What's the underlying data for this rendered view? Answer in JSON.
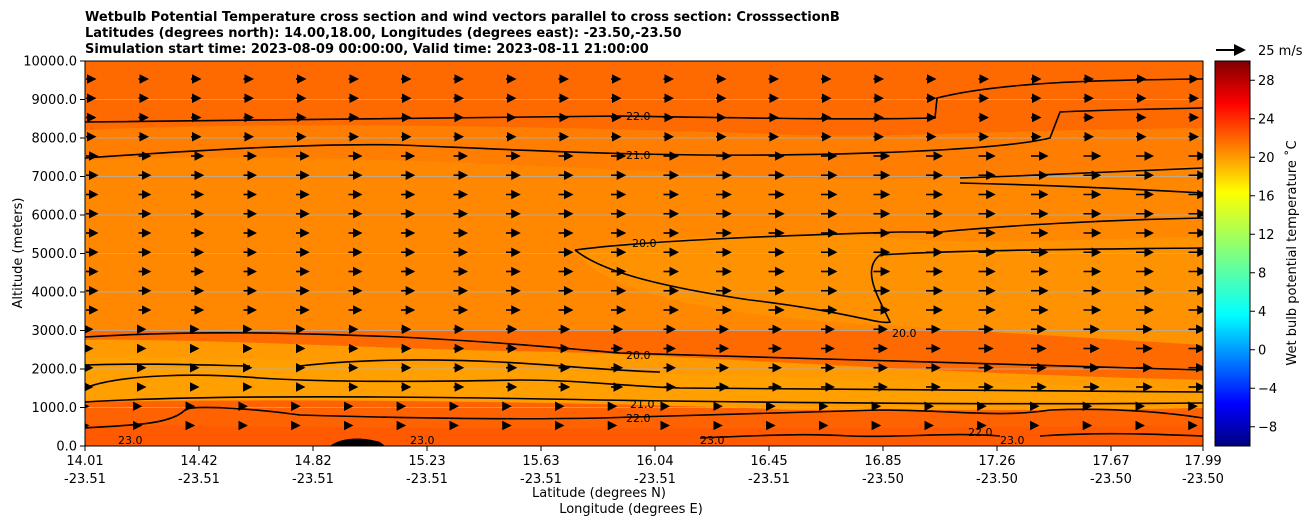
{
  "chart_data": {
    "type": "contourf",
    "title_lines": [
      "Wetbulb Potential Temperature cross section and wind vectors parallel to cross section: CrosssectionB",
      "Latitudes (degrees north): 14.00,18.00, Longitudes (degrees east): -23.50,-23.50",
      "Simulation start time: 2023-08-09 00:00:00, Valid time: 2023-08-11 21:00:00"
    ],
    "ylabel": "Altitude (meters)",
    "xlabel_lat": "Latitude (degrees N)",
    "xlabel_lon": "Longitude (degrees E)",
    "ylim": [
      0,
      10000
    ],
    "y_ticks": [
      "0.0",
      "1000.0",
      "2000.0",
      "3000.0",
      "4000.0",
      "5000.0",
      "6000.0",
      "7000.0",
      "8000.0",
      "9000.0",
      "10000.0"
    ],
    "x_tick_lats": [
      "14.01",
      "14.42",
      "14.82",
      "15.23",
      "15.63",
      "16.04",
      "16.45",
      "16.85",
      "17.26",
      "17.67",
      "17.99"
    ],
    "x_tick_lons": [
      "-23.51",
      "-23.51",
      "-23.51",
      "-23.51",
      "-23.51",
      "-23.51",
      "-23.51",
      "-23.50",
      "-23.50",
      "-23.50",
      "-23.50"
    ],
    "colorbar": {
      "label": "Wet bulb potential temperature ˚C",
      "range": [
        -10,
        30
      ],
      "ticks": [
        "28",
        "24",
        "20",
        "16",
        "12",
        "8",
        "4",
        "0",
        "−4",
        "−8"
      ]
    },
    "quiver_key": "25 m/s",
    "contour_labels": [
      {
        "text": "22.0",
        "altitude": 8500
      },
      {
        "text": "21.0",
        "altitude": 7500
      },
      {
        "text": "20.0",
        "altitude": 5300
      },
      {
        "text": "20.0",
        "altitude": 2400
      },
      {
        "text": "21.0",
        "altitude": 1100
      },
      {
        "text": "22.0",
        "altitude": 700
      },
      {
        "text": "23.0",
        "altitude": 100
      }
    ]
  }
}
